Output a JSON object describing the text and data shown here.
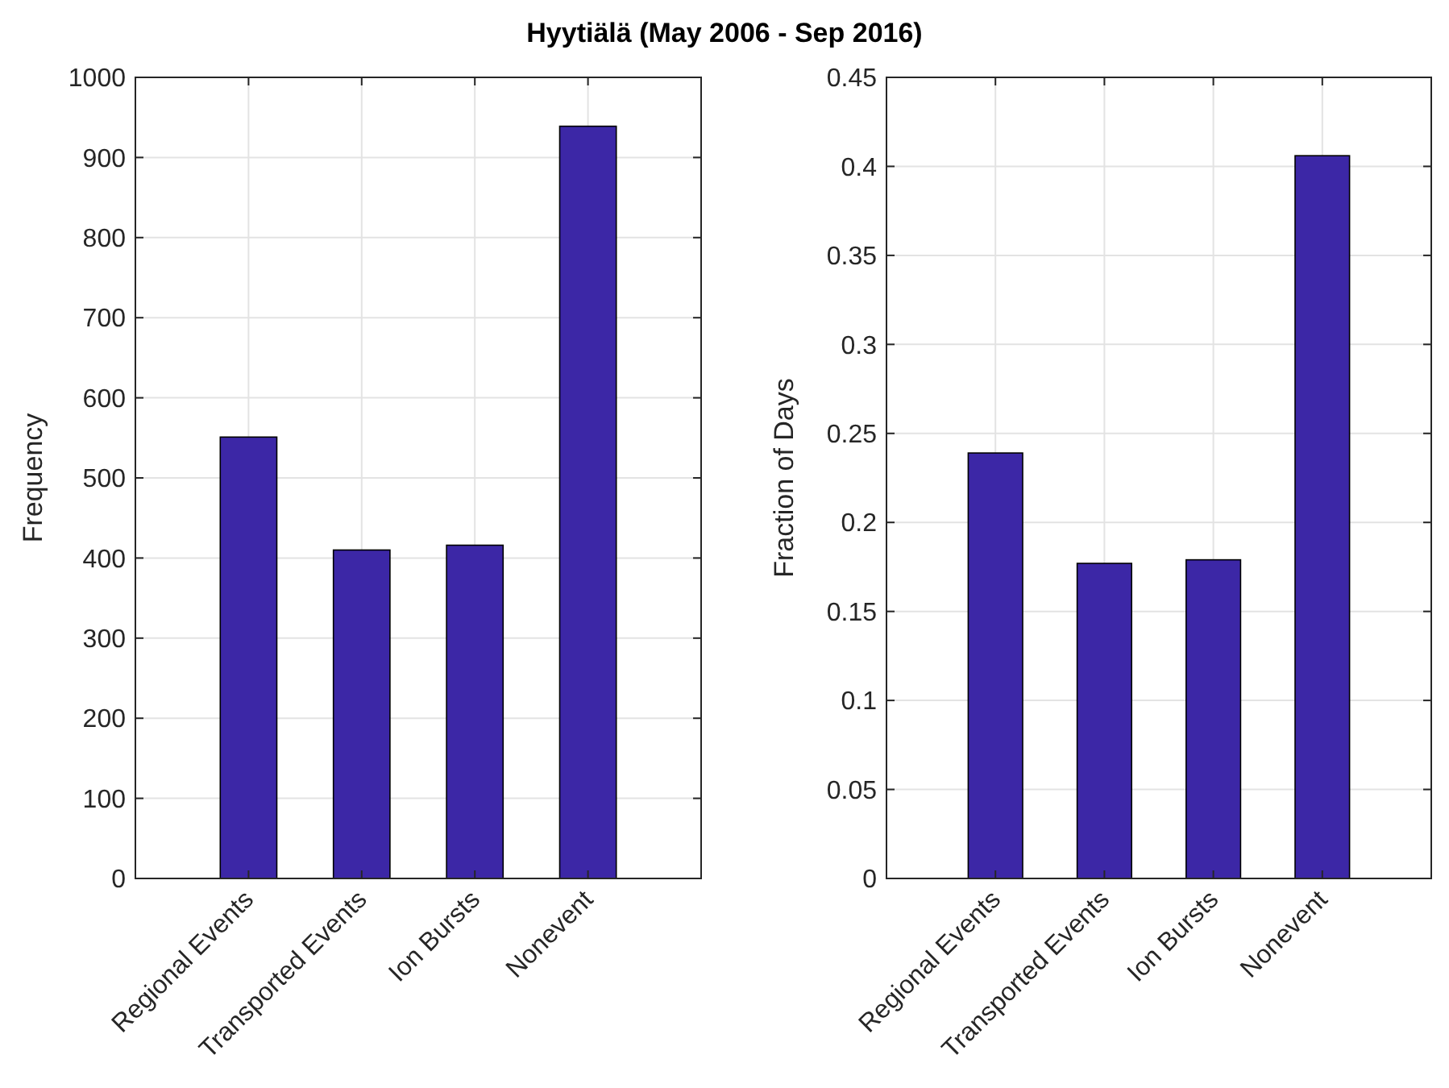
{
  "chart_data": [
    {
      "type": "bar",
      "title": "Hyytiälä (May 2006 - Sep 2016)",
      "ylabel": "Frequency",
      "categories": [
        "Regional Events",
        "Transported Events",
        "Ion Bursts",
        "Nonevent"
      ],
      "values": [
        551,
        410,
        416,
        939
      ],
      "color": "#3c27a6",
      "ylim": [
        0,
        1000
      ],
      "yticks": [
        0,
        100,
        200,
        300,
        400,
        500,
        600,
        700,
        800,
        900,
        1000
      ],
      "grid": true
    },
    {
      "type": "bar",
      "ylabel": "Fraction of Days",
      "categories": [
        "Regional Events",
        "Transported Events",
        "Ion Bursts",
        "Nonevent"
      ],
      "values": [
        0.239,
        0.177,
        0.179,
        0.406
      ],
      "color": "#3c27a6",
      "ylim": [
        0,
        0.45
      ],
      "yticks": [
        0,
        0.05,
        0.1,
        0.15,
        0.2,
        0.25,
        0.3,
        0.35,
        0.4,
        0.45
      ],
      "grid": true
    }
  ]
}
